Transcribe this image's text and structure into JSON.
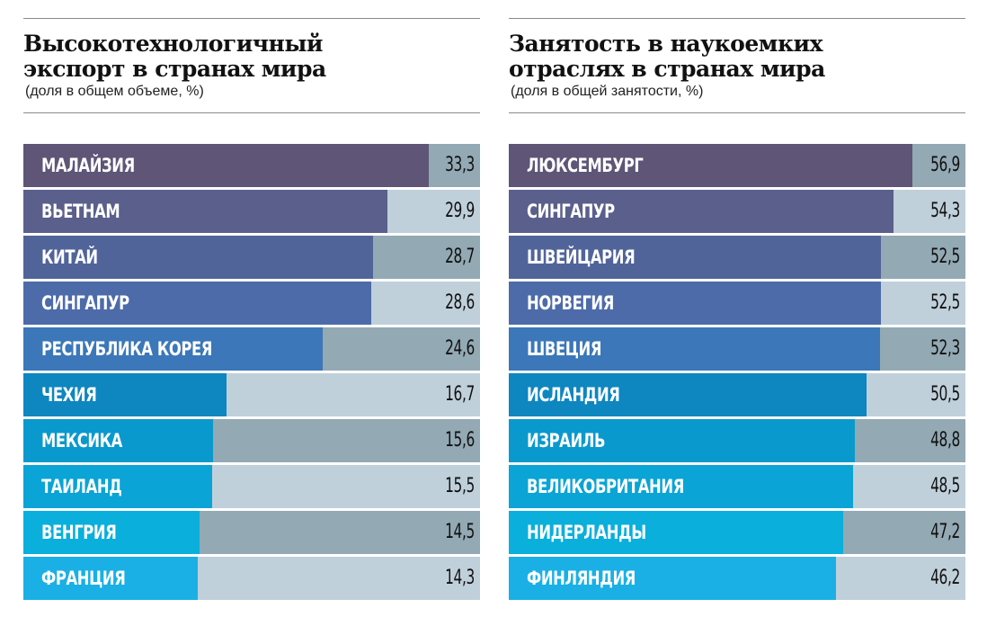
{
  "chart_data": [
    {
      "type": "bar",
      "title": "Высокотехнологичный экспорт в странах мира",
      "title_lines": [
        "Высокотехнологичный",
        "экспорт в странах мира"
      ],
      "subtitle": "(доля в общем объеме, %)",
      "categories": [
        "МАЛАЙЗИЯ",
        "ВЬЕТНАМ",
        "КИТАЙ",
        "СИНГАПУР",
        "РЕСПУБЛИКА КОРЕЯ",
        "ЧЕХИЯ",
        "МЕКСИКА",
        "ТАИЛАНД",
        "ВЕНГРИЯ",
        "ФРАНЦИЯ"
      ],
      "values": [
        33.3,
        29.9,
        28.7,
        28.6,
        24.6,
        16.7,
        15.6,
        15.5,
        14.5,
        14.3
      ],
      "value_labels": [
        "33,3",
        "29,9",
        "28,7",
        "28,6",
        "24,6",
        "16,7",
        "15,6",
        "15,5",
        "14,5",
        "14,3"
      ],
      "xlim": [
        0,
        37.5
      ],
      "orientation": "horizontal",
      "grid": false
    },
    {
      "type": "bar",
      "title": "Занятость в наукоемких отраслях в странах мира",
      "title_lines": [
        "Занятость в наукоемких",
        "отраслях в странах мира"
      ],
      "subtitle": "(доля в общей занятости, %)",
      "categories": [
        "ЛЮКСЕМБУРГ",
        "СИНГАПУР",
        "ШВЕЙЦАРИЯ",
        "НОРВЕГИЯ",
        "ШВЕЦИЯ",
        "ИСЛАНДИЯ",
        "ИЗРАИЛЬ",
        "ВЕЛИКОБРИТАНИЯ",
        "НИДЕРЛАНДЫ",
        "ФИНЛЯНДИЯ"
      ],
      "values": [
        56.9,
        54.3,
        52.5,
        52.5,
        52.3,
        50.5,
        48.8,
        48.5,
        47.2,
        46.2
      ],
      "value_labels": [
        "56,9",
        "54,3",
        "52,5",
        "52,5",
        "52,3",
        "50,5",
        "48,8",
        "48,5",
        "47,2",
        "46,2"
      ],
      "xlim": [
        0,
        64.4
      ],
      "orientation": "horizontal",
      "grid": false
    }
  ],
  "colors": {
    "bars": [
      "#5e5577",
      "#5a5f8c",
      "#51649a",
      "#4d6ba9",
      "#3b77b9",
      "#0e86c0",
      "#0a99cd",
      "#0aa4d6",
      "#0aafdc",
      "#1ab0e5"
    ],
    "track_light": "#c0d0db",
    "track_dark": "#93a9b4"
  }
}
